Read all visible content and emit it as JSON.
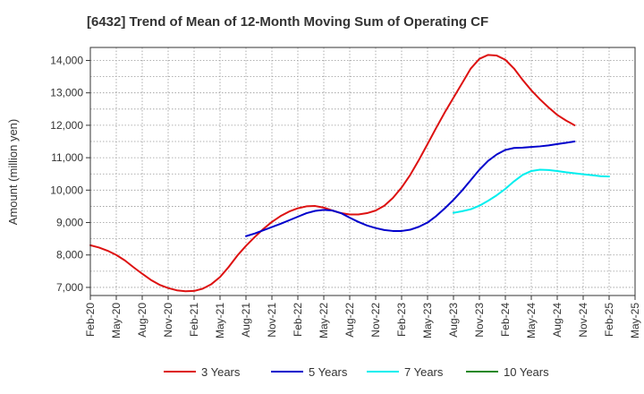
{
  "chart_data": {
    "type": "line",
    "title": "[6432]  Trend of Mean of 12-Month Moving Sum of Operating CF",
    "xlabel": "",
    "ylabel": "Amount (million yen)",
    "ylim": [
      6750,
      14400
    ],
    "yticks": [
      7000,
      8000,
      9000,
      10000,
      11000,
      12000,
      13000,
      14000
    ],
    "ytick_labels": [
      "7,000",
      "8,000",
      "9,000",
      "10,000",
      "11,000",
      "12,000",
      "13,000",
      "14,000"
    ],
    "x_start": "Feb-20",
    "x_end": "May-25",
    "x_tick_labels": [
      "Feb-20",
      "May-20",
      "Aug-20",
      "Nov-20",
      "Feb-21",
      "May-21",
      "Aug-21",
      "Nov-21",
      "Feb-22",
      "May-22",
      "Aug-22",
      "Nov-22",
      "Feb-23",
      "May-23",
      "Aug-23",
      "Nov-23",
      "Feb-24",
      "May-24",
      "Aug-24",
      "Nov-24",
      "Feb-25",
      "May-25"
    ],
    "grid": true,
    "legend_position": "bottom",
    "series": [
      {
        "name": "3 Years",
        "color": "#dd1111",
        "points": [
          [
            0,
            8300
          ],
          [
            1,
            8230
          ],
          [
            2,
            8130
          ],
          [
            3,
            8000
          ],
          [
            4,
            7830
          ],
          [
            5,
            7620
          ],
          [
            6,
            7420
          ],
          [
            7,
            7230
          ],
          [
            8,
            7080
          ],
          [
            9,
            6980
          ],
          [
            10,
            6910
          ],
          [
            11,
            6880
          ],
          [
            12,
            6890
          ],
          [
            13,
            6960
          ],
          [
            14,
            7100
          ],
          [
            15,
            7320
          ],
          [
            16,
            7630
          ],
          [
            17,
            7980
          ],
          [
            18,
            8280
          ],
          [
            19,
            8550
          ],
          [
            20,
            8800
          ],
          [
            21,
            9020
          ],
          [
            22,
            9200
          ],
          [
            23,
            9340
          ],
          [
            24,
            9440
          ],
          [
            25,
            9500
          ],
          [
            26,
            9510
          ],
          [
            27,
            9460
          ],
          [
            28,
            9370
          ],
          [
            29,
            9290
          ],
          [
            30,
            9250
          ],
          [
            31,
            9250
          ],
          [
            32,
            9290
          ],
          [
            33,
            9370
          ],
          [
            34,
            9520
          ],
          [
            35,
            9760
          ],
          [
            36,
            10080
          ],
          [
            37,
            10470
          ],
          [
            38,
            10930
          ],
          [
            39,
            11420
          ],
          [
            40,
            11920
          ],
          [
            41,
            12400
          ],
          [
            42,
            12850
          ],
          [
            43,
            13300
          ],
          [
            44,
            13750
          ],
          [
            45,
            14050
          ],
          [
            46,
            14170
          ],
          [
            47,
            14150
          ],
          [
            48,
            14020
          ],
          [
            49,
            13750
          ],
          [
            50,
            13400
          ],
          [
            51,
            13080
          ],
          [
            52,
            12800
          ],
          [
            53,
            12550
          ],
          [
            54,
            12320
          ],
          [
            55,
            12150
          ],
          [
            56,
            12000
          ]
        ]
      },
      {
        "name": "5 Years",
        "color": "#0000cc",
        "points": [
          [
            18,
            8580
          ],
          [
            19,
            8660
          ],
          [
            20,
            8760
          ],
          [
            21,
            8860
          ],
          [
            22,
            8960
          ],
          [
            23,
            9070
          ],
          [
            24,
            9180
          ],
          [
            25,
            9290
          ],
          [
            26,
            9360
          ],
          [
            27,
            9390
          ],
          [
            28,
            9370
          ],
          [
            29,
            9290
          ],
          [
            30,
            9150
          ],
          [
            31,
            9020
          ],
          [
            32,
            8910
          ],
          [
            33,
            8830
          ],
          [
            34,
            8770
          ],
          [
            35,
            8740
          ],
          [
            36,
            8740
          ],
          [
            37,
            8780
          ],
          [
            38,
            8870
          ],
          [
            39,
            9000
          ],
          [
            40,
            9200
          ],
          [
            41,
            9440
          ],
          [
            42,
            9700
          ],
          [
            43,
            9990
          ],
          [
            44,
            10310
          ],
          [
            45,
            10630
          ],
          [
            46,
            10900
          ],
          [
            47,
            11100
          ],
          [
            48,
            11240
          ],
          [
            49,
            11300
          ],
          [
            50,
            11310
          ],
          [
            51,
            11330
          ],
          [
            52,
            11350
          ],
          [
            53,
            11380
          ],
          [
            54,
            11420
          ],
          [
            55,
            11460
          ],
          [
            56,
            11500
          ]
        ]
      },
      {
        "name": "7 Years",
        "color": "#00eeee",
        "points": [
          [
            42,
            9300
          ],
          [
            43,
            9350
          ],
          [
            44,
            9410
          ],
          [
            45,
            9520
          ],
          [
            46,
            9670
          ],
          [
            47,
            9840
          ],
          [
            48,
            10040
          ],
          [
            49,
            10270
          ],
          [
            50,
            10470
          ],
          [
            51,
            10590
          ],
          [
            52,
            10630
          ],
          [
            53,
            10620
          ],
          [
            54,
            10590
          ],
          [
            55,
            10550
          ],
          [
            56,
            10520
          ],
          [
            57,
            10490
          ],
          [
            58,
            10460
          ],
          [
            59,
            10430
          ],
          [
            60,
            10420
          ]
        ]
      },
      {
        "name": "10 Years",
        "color": "#228822",
        "points": []
      }
    ]
  }
}
